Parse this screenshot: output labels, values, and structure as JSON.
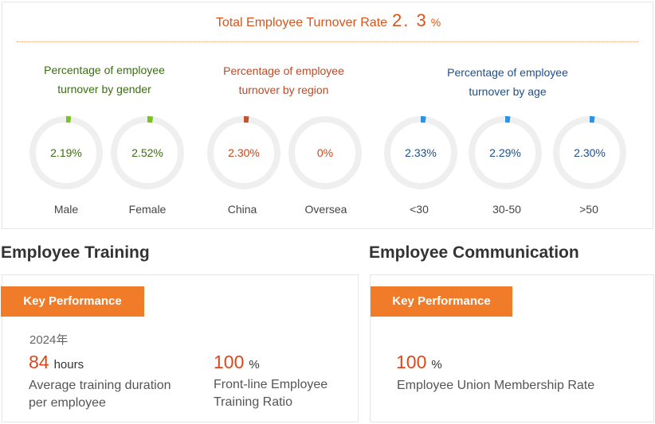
{
  "turnover": {
    "label": "Total Employee Turnover Rate",
    "value": "2. 3",
    "unit": "%",
    "groups": [
      {
        "title_line1": "Percentage of employee",
        "title_line2": "turnover by gender",
        "color": "#3a6e12",
        "accent": "#7cc21f",
        "items": [
          {
            "label": "Male",
            "value": "2.19%",
            "pct": 2.19
          },
          {
            "label": "Female",
            "value": "2.52%",
            "pct": 2.52
          }
        ]
      },
      {
        "title_line1": "Percentage of employee",
        "title_line2": "turnover by region",
        "color": "#c4471d",
        "accent": "#c0522f",
        "items": [
          {
            "label": "China",
            "value": "2.30%",
            "pct": 2.3
          },
          {
            "label": "Oversea",
            "value": "0%",
            "pct": 0
          }
        ]
      },
      {
        "title_line1": "Percentage of employee",
        "title_line2": "turnover by age",
        "color": "#1d4f8c",
        "accent": "#2a93e6",
        "items": [
          {
            "label": "<30",
            "value": "2.33%",
            "pct": 2.33
          },
          {
            "label": "30-50",
            "value": "2.29%",
            "pct": 2.29
          },
          {
            "label": ">50",
            "value": "2.30%",
            "pct": 2.3
          }
        ]
      }
    ]
  },
  "training": {
    "heading": "Employee Training",
    "key_label": "Key Performance",
    "year": "2024年",
    "hours_value": "84",
    "hours_unit": "hours",
    "hours_desc_line1": "Average training duration",
    "hours_desc_line2": "per employee",
    "ratio_value": "100",
    "ratio_unit": "%",
    "ratio_desc_line1": "Front-line Employee",
    "ratio_desc_line2": "Training Ratio"
  },
  "communication": {
    "heading": "Employee Communication",
    "key_label": "Key Performance",
    "value": "100",
    "unit": "%",
    "desc": "Employee Union Membership Rate"
  }
}
